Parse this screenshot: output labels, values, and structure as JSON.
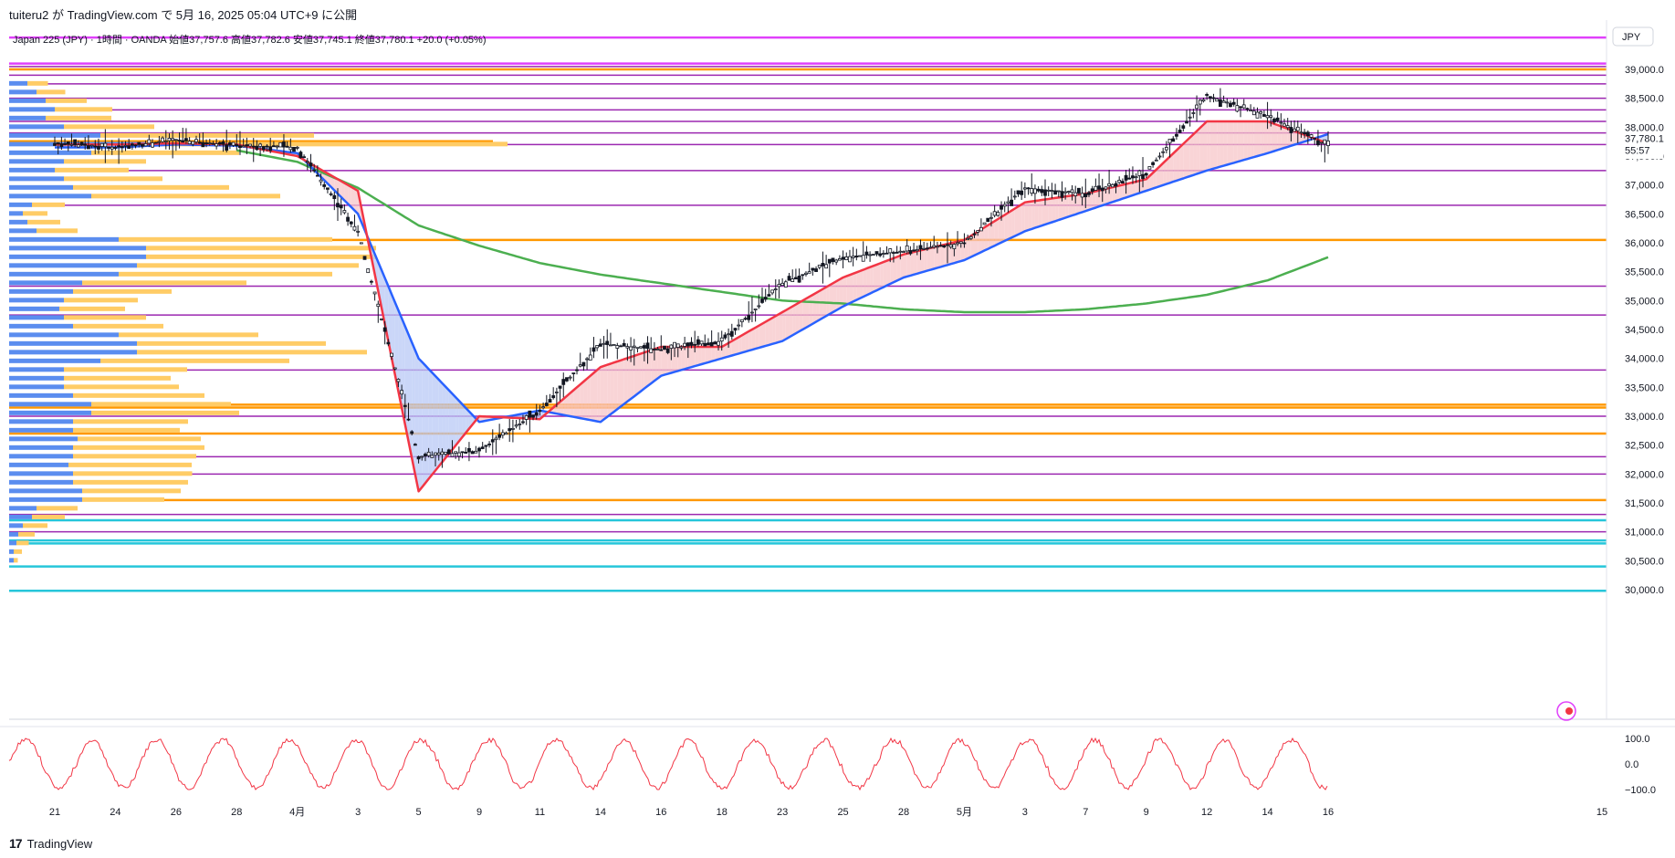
{
  "header": {
    "publish_line": "tuiteru2 が TradingView.com で 5月 16, 2025 05:04 UTC+9 に公開",
    "legend": "Japan 225 (JPY) · 1時間 · OANDA  始値37,757.6  高値37,782.6  安値37,745.1  終値37,780.1  +20.0 (+0.05%)"
  },
  "footer": {
    "logo_text": "TradingView",
    "logo_mark": "17"
  },
  "price_axis": {
    "currency": "JPY",
    "ticks": [
      39000,
      38500,
      38000,
      37500,
      37000,
      36500,
      36000,
      35500,
      35000,
      34500,
      34000,
      33500,
      33000,
      32500,
      32000,
      31500,
      31000,
      30500,
      30000
    ],
    "tick_labels": [
      "39,000.0",
      "38,500.0",
      "38,000.0",
      "37,500.0",
      "37,000.0",
      "36,500.0",
      "36,000.0",
      "35,500.0",
      "35,000.0",
      "34,500.0",
      "34,000.0",
      "33,500.0",
      "33,000.0",
      "32,500.0",
      "32,000.0",
      "31,500.0",
      "31,000.0",
      "30,500.0",
      "30,000.0"
    ],
    "last_price_label": "37,780.1",
    "countdown_label": "55:57",
    "range": [
      29700,
      39550
    ]
  },
  "oscillator_axis": {
    "tick_labels": [
      "100.0",
      "0.0",
      "−100.0"
    ],
    "ticks": [
      100,
      0,
      -100
    ]
  },
  "time_axis": {
    "labels": [
      "21",
      "24",
      "26",
      "28",
      "4月",
      "3",
      "5",
      "9",
      "11",
      "14",
      "16",
      "18",
      "23",
      "25",
      "28",
      "5月",
      "3",
      "7",
      "9",
      "12",
      "14",
      "16",
      "15"
    ]
  },
  "colors": {
    "candle": "#131722",
    "ema_red": "#f23645",
    "ema_blue": "#2962ff",
    "ema_green": "#4caf50",
    "fill_red": "#f7c6c8",
    "fill_blue": "#b8c8f5",
    "purple_line": "#9c27b0",
    "orange_line": "#ff9800",
    "cyan_line": "#26c6da",
    "violet_line": "#e040fb",
    "profile_blue": "#5b8def",
    "profile_orange": "#ffcc66",
    "osc": "#f23645"
  },
  "chart_data": [
    {
      "type": "line",
      "title": "Japan 225 (JPY) · 1時間 · OANDA",
      "ohlc": {
        "open": 37757.6,
        "high": 37782.6,
        "low": 37745.1,
        "close": 37780.1,
        "change": 20.0,
        "change_pct": 0.05
      },
      "x": [
        "21",
        "24",
        "26",
        "28",
        "4月",
        "3",
        "5",
        "9",
        "11",
        "14",
        "16",
        "18",
        "23",
        "25",
        "28",
        "5月",
        "3",
        "7",
        "9",
        "12",
        "14",
        "16"
      ],
      "series": [
        {
          "values": [
            37720,
            37650,
            37780,
            37680,
            37650,
            36200,
            32300,
            32400,
            33100,
            34250,
            34150,
            34300,
            35300,
            35750,
            35850,
            36000,
            36950,
            36850,
            37200,
            38550,
            38200,
            37680
          ]
        },
        {
          "values": [
            37700,
            37700,
            37720,
            37700,
            37500,
            36900,
            31700,
            33000,
            32950,
            33850,
            34200,
            34200,
            34800,
            35400,
            35800,
            36050,
            36700,
            36850,
            37100,
            38100,
            38100,
            37720
          ]
        },
        {
          "values": [
            37650,
            37650,
            37700,
            37680,
            37550,
            36500,
            34000,
            32900,
            33100,
            32900,
            33700,
            34000,
            34300,
            34900,
            35400,
            35700,
            36200,
            36550,
            36900,
            37250,
            37550,
            37880
          ]
        },
        {
          "values": [
            null,
            null,
            null,
            37600,
            37400,
            36950,
            36300,
            35950,
            35650,
            35450,
            35300,
            35150,
            35000,
            34950,
            34850,
            34800,
            34800,
            34850,
            34950,
            35100,
            35350,
            35750
          ]
        }
      ],
      "horizontal_levels": {
        "purple": [
          39050,
          38900,
          38750,
          38500,
          38300,
          38100,
          37900,
          37700,
          37250,
          36650,
          35250,
          34750,
          33800,
          33150,
          33000,
          32300,
          32000,
          31300,
          31000
        ],
        "orange": [
          39000,
          36050,
          33200,
          33150,
          32700,
          31550
        ],
        "cyan": [
          31200,
          30850,
          30800,
          30400,
          29980
        ],
        "violet": [
          39550,
          39100
        ]
      },
      "volume_profile": {
        "prices": [
          38750,
          38600,
          38450,
          38300,
          38150,
          38000,
          37850,
          37700,
          37550,
          37400,
          37250,
          37100,
          36950,
          36800,
          36650,
          36500,
          36350,
          36200,
          36050,
          35900,
          35750,
          35600,
          35450,
          35300,
          35150,
          35000,
          34850,
          34700,
          34550,
          34400,
          34250,
          34100,
          33950,
          33800,
          33650,
          33500,
          33350,
          33200,
          33050,
          32900,
          32750,
          32600,
          32450,
          32300,
          32150,
          32000,
          31850,
          31700,
          31550,
          31400,
          31250,
          31100,
          30950,
          30800,
          30650,
          30500
        ],
        "buy": [
          20,
          30,
          40,
          50,
          40,
          60,
          100,
          150,
          90,
          60,
          50,
          60,
          70,
          90,
          25,
          15,
          20,
          30,
          120,
          150,
          150,
          140,
          120,
          80,
          70,
          60,
          55,
          60,
          70,
          120,
          140,
          140,
          100,
          60,
          60,
          60,
          70,
          90,
          90,
          70,
          70,
          75,
          70,
          70,
          65,
          70,
          70,
          80,
          80,
          30,
          25,
          15,
          10,
          8,
          5,
          5
        ],
        "sell": [
          25,
          35,
          50,
          70,
          80,
          110,
          260,
          440,
          180,
          100,
          90,
          120,
          190,
          230,
          40,
          30,
          40,
          50,
          260,
          280,
          280,
          270,
          260,
          200,
          120,
          90,
          80,
          100,
          110,
          170,
          230,
          280,
          230,
          150,
          130,
          140,
          160,
          170,
          180,
          140,
          130,
          150,
          160,
          150,
          150,
          145,
          140,
          120,
          100,
          50,
          40,
          30,
          20,
          15,
          10,
          5
        ]
      },
      "oscillator": {
        "ylim": [
          -100,
          100
        ]
      }
    }
  ]
}
